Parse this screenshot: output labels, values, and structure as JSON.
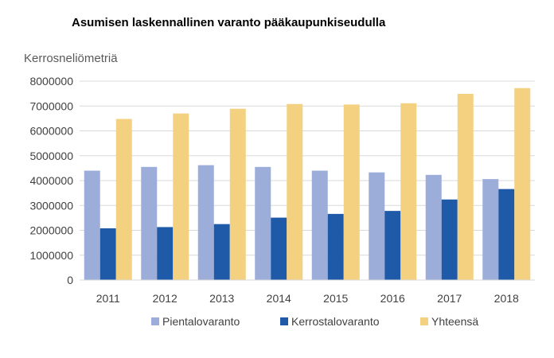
{
  "chart_data": {
    "type": "bar",
    "title": "Asumisen laskennallinen varanto pääkaupunkiseudulla",
    "ylabel": "Kerrosneliömetriä",
    "xlabel": "",
    "categories": [
      "2011",
      "2012",
      "2013",
      "2014",
      "2015",
      "2016",
      "2017",
      "2018"
    ],
    "yticks": [
      "0",
      "1000000",
      "2000000",
      "3000000",
      "4000000",
      "5000000",
      "6000000",
      "7000000",
      "8000000"
    ],
    "ylim": [
      0,
      8000000
    ],
    "grid": true,
    "legend_position": "bottom",
    "series": [
      {
        "name": "Pientalovaranto",
        "color": "#9dadd9",
        "values": [
          4400000,
          4550000,
          4620000,
          4550000,
          4400000,
          4330000,
          4230000,
          4060000
        ]
      },
      {
        "name": "Kerrostalovaranto",
        "color": "#1f5aa8",
        "values": [
          2080000,
          2130000,
          2250000,
          2510000,
          2660000,
          2780000,
          3240000,
          3660000
        ]
      },
      {
        "name": "Yhteensä",
        "color": "#f3d181",
        "values": [
          6480000,
          6700000,
          6890000,
          7080000,
          7060000,
          7110000,
          7490000,
          7720000
        ]
      }
    ]
  }
}
